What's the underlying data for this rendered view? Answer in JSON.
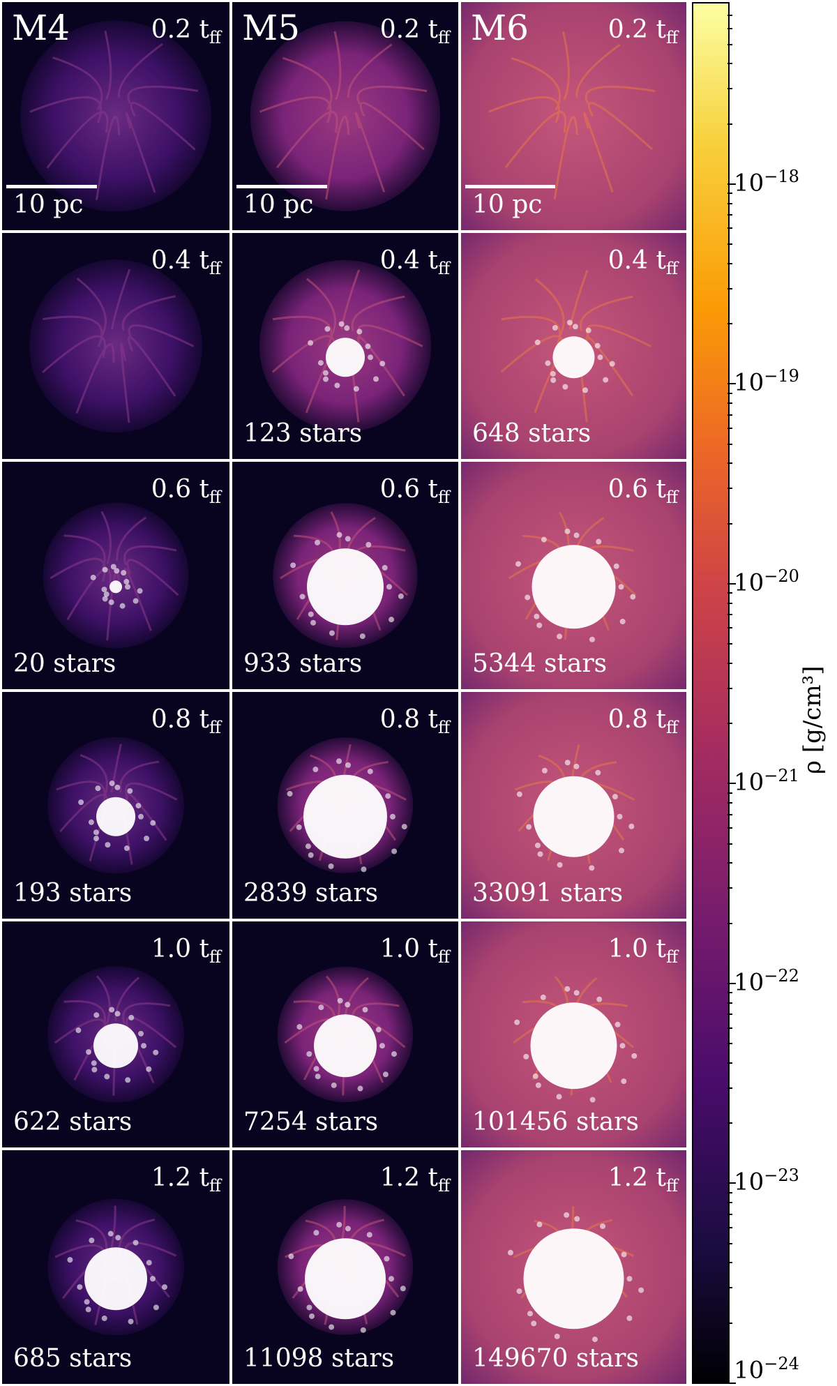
{
  "models": [
    "M4",
    "M5",
    "M6"
  ],
  "scale_label": "10 pc",
  "time_unit_sub": "ff",
  "rows": [
    {
      "time": "0.2 t",
      "stars": [
        "",
        "",
        ""
      ]
    },
    {
      "time": "0.4 t",
      "stars": [
        "",
        "123 stars",
        "648 stars"
      ]
    },
    {
      "time": "0.6 t",
      "stars": [
        "20 stars",
        "933 stars",
        "5344 stars"
      ]
    },
    {
      "time": "0.8 t",
      "stars": [
        "193 stars",
        "2839 stars",
        "33091 stars"
      ]
    },
    {
      "time": "1.0 t",
      "stars": [
        "622 stars",
        "7254 stars",
        "101456 stars"
      ]
    },
    {
      "time": "1.2 t",
      "stars": [
        "685 stars",
        "11098 stars",
        "149670 stars"
      ]
    }
  ],
  "colorbar": {
    "label": "ρ [g/cm³]",
    "colormap": "inferno",
    "tick_labels": [
      "10",
      "10",
      "10",
      "10",
      "10",
      "10",
      "10"
    ],
    "tick_exponents": [
      "−24",
      "−23",
      "−22",
      "−21",
      "−20",
      "−19",
      "−18"
    ],
    "range_log10": [
      -24,
      -17.1
    ]
  }
}
